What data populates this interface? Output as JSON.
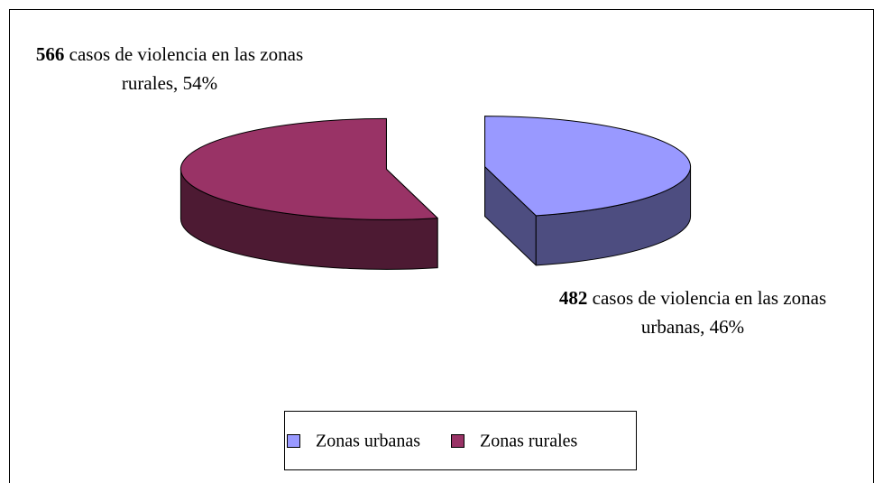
{
  "chart_data": {
    "type": "pie3d",
    "categories": [
      "Zonas urbanas",
      "Zonas rurales"
    ],
    "values": [
      46,
      54
    ],
    "value_labels": [
      "46%",
      "54%"
    ],
    "counts": [
      482,
      566
    ],
    "label_texts": [
      "casos de violencia en las zonas urbanas,",
      "casos de violencia en las zonas rurales,"
    ],
    "colors": [
      "#9999ff",
      "#993366"
    ],
    "exploded": true,
    "legend": "bottom"
  }
}
